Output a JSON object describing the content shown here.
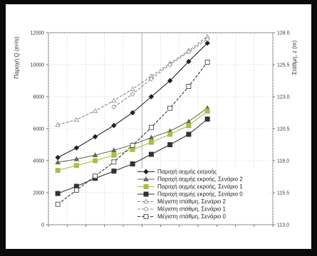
{
  "chart_data": {
    "type": "line",
    "ylabel_left": "Παροχή Q (m³/s)",
    "ylabel_right": "Στάθμη, z (m)",
    "y_left_ticks": [
      "0",
      "2000",
      "4000",
      "6000",
      "8000",
      "10000",
      "12000"
    ],
    "y_left_range": [
      0,
      12000
    ],
    "y_right_ticks": [
      "113.0",
      "115.5",
      "118.0",
      "120.5",
      "123.0",
      "125.5",
      "128.0"
    ],
    "y_right_range": [
      113.0,
      128.0
    ],
    "x_count": 12,
    "grid": true,
    "legend_position": "bottom-right",
    "series": [
      {
        "name": "Παροχή αιχμής εισροής",
        "axis": "left",
        "color": "#222222",
        "marker": "diamond",
        "dash": "solid",
        "values": [
          4200,
          4800,
          5500,
          6200,
          7000,
          8000,
          9000,
          10200,
          11350
        ]
      },
      {
        "name": "Παροχή αιχμής εκροής, Σενάριο 2",
        "axis": "left",
        "color": "#666666",
        "marker": "triangle",
        "dash": "solid",
        "values": [
          3900,
          4100,
          4350,
          4650,
          5000,
          5450,
          5850,
          6450,
          7300
        ]
      },
      {
        "name": "Παροχή αιχμής εκροής, Σενάριο 1",
        "axis": "left",
        "color": "#a6c23a",
        "marker": "square",
        "dash": "solid",
        "values": [
          3400,
          3700,
          4000,
          4350,
          4700,
          5150,
          5650,
          6200,
          7100
        ]
      },
      {
        "name": "Παροχή αιχμής εκροής, Σενάριο 0",
        "axis": "left",
        "color": "#333333",
        "marker": "square",
        "dash": "solid",
        "values": [
          1950,
          2400,
          2900,
          3350,
          3800,
          4400,
          5000,
          5650,
          6600
        ]
      },
      {
        "name": "Μέγιστη στάθμη, Σενάριο 2",
        "axis": "right",
        "color": "#888888",
        "marker": "triangle-open",
        "dash": "dash",
        "values": [
          120.8,
          121.2,
          121.9,
          122.7,
          123.6,
          124.6,
          125.6,
          126.6,
          127.7
        ]
      },
      {
        "name": "Μέγιστη στάθμη, Σενάριο 1",
        "axis": "right",
        "color": "#888888",
        "marker": "diamond-open",
        "dash": "dash",
        "values": [
          null,
          null,
          null,
          122.2,
          123.2,
          124.4,
          125.5,
          126.5,
          127.5
        ]
      },
      {
        "name": "Μέγιστη στάθμη, Σενάριο 0",
        "axis": "right",
        "color": "#333333",
        "marker": "square-open",
        "dash": "dash",
        "values": [
          114.6,
          115.7,
          116.8,
          117.9,
          119.2,
          120.6,
          122.1,
          123.8,
          125.7
        ]
      }
    ]
  }
}
